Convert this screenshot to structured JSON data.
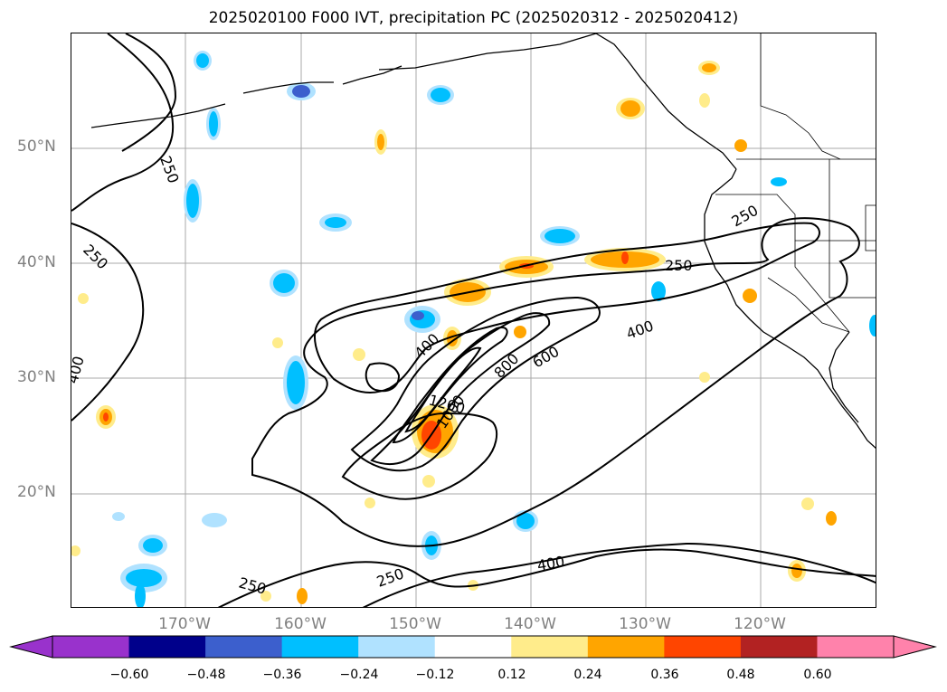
{
  "title": "2025020100 F000 IVT, precipitation PC (2025020312 - 2025020412)",
  "lat_labels": [
    "50°N",
    "40°N",
    "30°N",
    "20°N"
  ],
  "lon_labels": [
    "170°W",
    "160°W",
    "150°W",
    "140°W",
    "130°W",
    "120°W"
  ],
  "contour_labels": [
    "250",
    "250",
    "400",
    "250",
    "250",
    "400",
    "400",
    "600",
    "800",
    "1000",
    "1200",
    "250",
    "400",
    "250"
  ],
  "colorbar": {
    "ticks": [
      "−0.60",
      "−0.48",
      "−0.36",
      "−0.24",
      "−0.12",
      "0.12",
      "0.24",
      "0.36",
      "0.48",
      "0.60"
    ],
    "colors": [
      "#9932cc",
      "#00008b",
      "#3c5fcd",
      "#00bfff",
      "#b0e2ff",
      "#ffffff",
      "#ffec8b",
      "#ffa500",
      "#ff4500",
      "#b22222",
      "#ff82ab"
    ]
  },
  "map_colors": {
    "grid": "#a9a9a9",
    "contour": "#000000",
    "coast": "#000000"
  }
}
